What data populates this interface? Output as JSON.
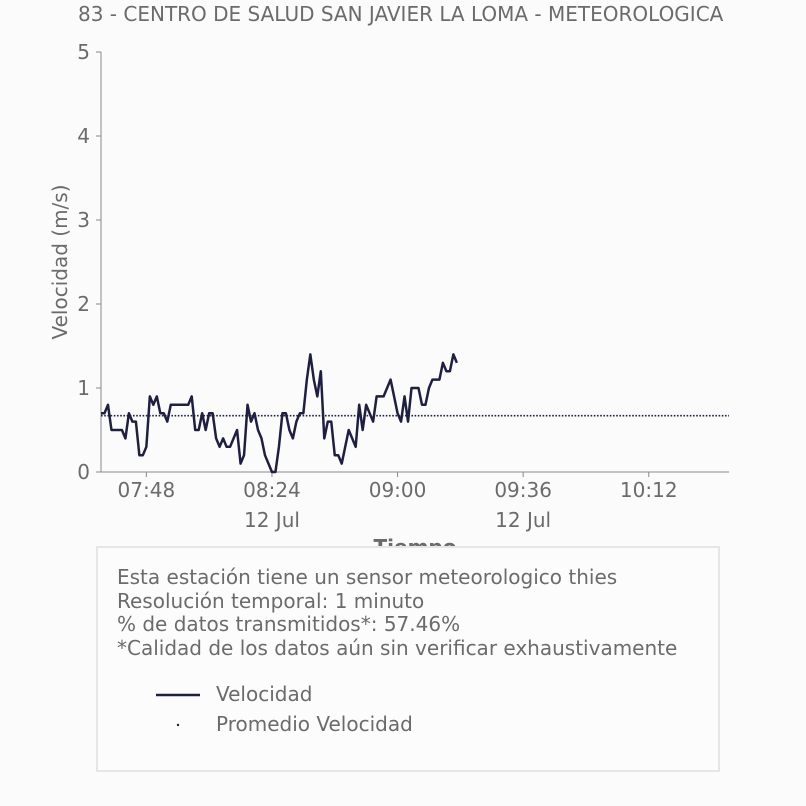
{
  "chart_data": {
    "type": "line",
    "title": "83 - CENTRO DE SALUD SAN JAVIER LA LOMA - METEOROLOGICA",
    "xlabel": "Tiempo",
    "ylabel": "Velocidad (m/s)",
    "ylim": [
      0,
      5
    ],
    "yticks": [
      "0",
      "1",
      "2",
      "3",
      "4",
      "5"
    ],
    "xlim": [
      "07:35",
      "10:35"
    ],
    "xticks": [
      {
        "time": "07:48",
        "label": "07:48",
        "sublabel": ""
      },
      {
        "time": "08:24",
        "label": "08:24",
        "sublabel": "12 Jul"
      },
      {
        "time": "09:00",
        "label": "09:00",
        "sublabel": ""
      },
      {
        "time": "09:36",
        "label": "09:36",
        "sublabel": "12 Jul"
      },
      {
        "time": "10:12",
        "label": "10:12",
        "sublabel": ""
      }
    ],
    "grid": false,
    "series": [
      {
        "name": "Velocidad",
        "color": "#1f2040",
        "style": "solid",
        "x": [
          "07:35",
          "07:36",
          "07:37",
          "07:38",
          "07:39",
          "07:40",
          "07:41",
          "07:42",
          "07:43",
          "07:44",
          "07:45",
          "07:46",
          "07:47",
          "07:48",
          "07:49",
          "07:50",
          "07:51",
          "07:52",
          "07:53",
          "07:54",
          "07:55",
          "07:56",
          "07:57",
          "07:58",
          "07:59",
          "08:00",
          "08:01",
          "08:02",
          "08:03",
          "08:04",
          "08:05",
          "08:06",
          "08:07",
          "08:08",
          "08:09",
          "08:10",
          "08:11",
          "08:12",
          "08:13",
          "08:14",
          "08:15",
          "08:16",
          "08:17",
          "08:18",
          "08:19",
          "08:20",
          "08:21",
          "08:22",
          "08:23",
          "08:24",
          "08:25",
          "08:26",
          "08:27",
          "08:28",
          "08:29",
          "08:30",
          "08:31",
          "08:32",
          "08:33",
          "08:34",
          "08:35",
          "08:36",
          "08:37",
          "08:38",
          "08:39",
          "08:40",
          "08:41",
          "08:42",
          "08:43",
          "08:44",
          "08:45",
          "08:46",
          "08:47",
          "08:48",
          "08:49",
          "08:50",
          "08:51",
          "08:52",
          "08:53",
          "08:54",
          "08:55",
          "08:56",
          "08:57",
          "08:58",
          "08:59",
          "09:00",
          "09:01",
          "09:02",
          "09:03",
          "09:04",
          "09:05",
          "09:06",
          "09:07",
          "09:08",
          "09:09",
          "09:10",
          "09:11",
          "09:12",
          "09:13",
          "09:14",
          "09:15",
          "09:16",
          "09:17"
        ],
        "y": [
          0.7,
          0.7,
          0.8,
          0.5,
          0.5,
          0.5,
          0.5,
          0.4,
          0.7,
          0.6,
          0.6,
          0.2,
          0.2,
          0.3,
          0.9,
          0.8,
          0.9,
          0.7,
          0.7,
          0.6,
          0.8,
          0.8,
          0.8,
          0.8,
          0.8,
          0.8,
          0.9,
          0.5,
          0.5,
          0.7,
          0.5,
          0.7,
          0.7,
          0.4,
          0.3,
          0.4,
          0.3,
          0.3,
          0.4,
          0.5,
          0.1,
          0.2,
          0.8,
          0.6,
          0.7,
          0.5,
          0.4,
          0.2,
          0.1,
          0.0,
          0.0,
          0.3,
          0.7,
          0.7,
          0.5,
          0.4,
          0.6,
          0.7,
          0.7,
          1.1,
          1.4,
          1.1,
          0.9,
          1.2,
          0.4,
          0.6,
          0.6,
          0.2,
          0.2,
          0.1,
          0.3,
          0.5,
          0.4,
          0.3,
          0.8,
          0.5,
          0.8,
          0.7,
          0.6,
          0.9,
          0.9,
          0.9,
          1.0,
          1.1,
          0.9,
          0.7,
          0.6,
          0.9,
          0.6,
          1.0,
          1.0,
          1.0,
          0.8,
          0.8,
          1.0,
          1.1,
          1.1,
          1.1,
          1.3,
          1.2,
          1.2,
          1.4,
          1.3
        ]
      },
      {
        "name": "Promedio Velocidad",
        "color": "#1f2040",
        "style": "dotted",
        "constant": 0.67
      }
    ]
  },
  "info": {
    "lines": [
      "Esta estación tiene un sensor meteorologico thies",
      "Resolución temporal: 1 minuto",
      "% de datos transmitidos*: 57.46%",
      "*Calidad de los datos aún sin verificar exhaustivamente"
    ]
  },
  "legend": [
    {
      "label": "Velocidad",
      "style": "solid"
    },
    {
      "label": "Promedio Velocidad",
      "style": "dotted"
    }
  ]
}
